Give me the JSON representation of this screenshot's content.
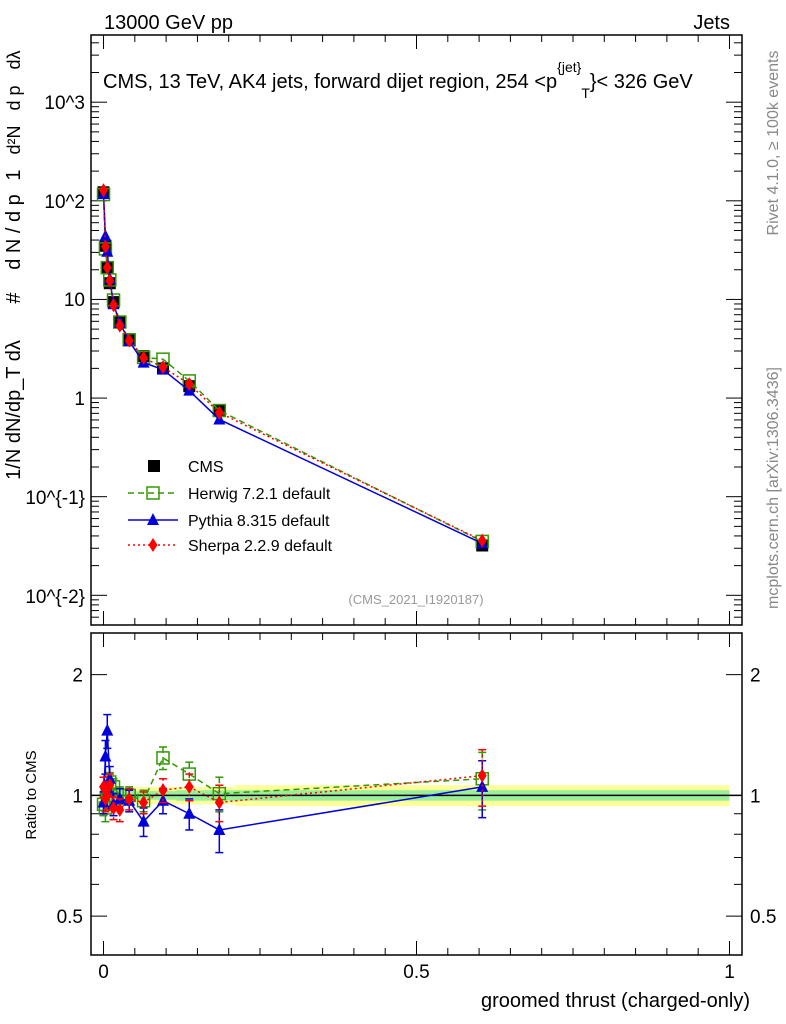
{
  "header": {
    "left": "13000 GeV pp",
    "right": "Jets"
  },
  "side_labels": {
    "rivet": "Rivet 4.1.0, ≥ 100k events",
    "mcplots": "mcplots.cern.ch [arXiv:1306.3436]"
  },
  "chart_data": {
    "type": "line",
    "title": "CMS, 13 TeV, AK4 jets, forward dijet region, 254 < p_T^{jet} < 326 GeV",
    "title_text": "CMS, 13 TeV, AK4 jets, forward dijet region, 254 <p",
    "title_sup": "{jet}",
    "title_sub": "T",
    "title_end": "}< 326 GeV",
    "ylabel": "1/N dN/dp_T dλ",
    "ylabel_parts": {
      "num": "1",
      "den": "d N / d p",
      "sub": "T",
      "frac2num": "d²N",
      "frac2den": "d p",
      "frac2tail": "dλ",
      "hash": "#"
    },
    "xlabel": "groomed thrust (charged-only)",
    "ratio_ylabel": "Ratio to CMS",
    "analysis_tag": "(CMS_2021_I1920187)",
    "xlim": [
      -0.02,
      1.02
    ],
    "ylim": [
      0.005,
      4800
    ],
    "ratio_ylim": [
      0.4,
      2.54
    ],
    "x_ticks": [
      "0",
      "0.5",
      "1"
    ],
    "y_ticks": [
      "10^{-2}",
      "10^{-1}",
      "1",
      "10",
      "10^2",
      "10^3"
    ],
    "y_tick_labels": [
      {
        "base": "10",
        "exp": "−2"
      },
      {
        "base": "10",
        "exp": "−1"
      },
      {
        "base": "1",
        "exp": ""
      },
      {
        "base": "10",
        "exp": ""
      },
      {
        "base": "10",
        "exp": "2"
      },
      {
        "base": "10",
        "exp": "3"
      }
    ],
    "ratio_ticks": [
      "0.5",
      "1",
      "2"
    ],
    "x": [
      0.0,
      0.003,
      0.006,
      0.01,
      0.016,
      0.026,
      0.041,
      0.064,
      0.095,
      0.137,
      0.185,
      0.605
    ],
    "cms": {
      "name": "CMS",
      "values": [
        122,
        35,
        21,
        14.6,
        9.4,
        5.9,
        3.9,
        2.66,
        2.0,
        1.32,
        0.74,
        0.032
      ]
    },
    "band_stat": [
      0.04,
      0.05,
      0.05,
      0.04,
      0.03,
      0.03,
      0.025,
      0.025,
      0.025,
      0.03,
      0.03,
      0.03
    ],
    "band_total": [
      0.08,
      0.09,
      0.09,
      0.08,
      0.06,
      0.05,
      0.05,
      0.05,
      0.05,
      0.05,
      0.05,
      0.06
    ],
    "series": [
      {
        "name": "Herwig 7.2.1 default",
        "color": "#339900",
        "ratio": [
          0.95,
          0.93,
          1.0,
          1.08,
          1.05,
          1.0,
          1.0,
          0.97,
          1.24,
          1.13,
          1.01,
          1.1
        ],
        "err": [
          0.06,
          0.07,
          0.07,
          0.06,
          0.05,
          0.05,
          0.05,
          0.06,
          0.08,
          0.08,
          0.1,
          0.18
        ]
      },
      {
        "name": "Pythia 8.315 default",
        "color": "#0000dd",
        "ratio": [
          0.96,
          1.25,
          1.45,
          1.1,
          0.95,
          0.98,
          0.97,
          0.86,
          0.97,
          0.9,
          0.82,
          1.05
        ],
        "err": [
          0.06,
          0.12,
          0.14,
          0.08,
          0.06,
          0.06,
          0.06,
          0.07,
          0.07,
          0.08,
          0.1,
          0.17
        ]
      },
      {
        "name": "Sherpa 2.2.9 default",
        "color": "#ff0000",
        "ratio": [
          1.05,
          0.98,
          1.0,
          1.06,
          0.93,
          0.92,
          0.98,
          0.96,
          1.03,
          1.05,
          0.96,
          1.12
        ],
        "err": [
          0.06,
          0.07,
          0.08,
          0.07,
          0.06,
          0.06,
          0.06,
          0.06,
          0.07,
          0.08,
          0.1,
          0.18
        ]
      }
    ],
    "legend_position": "middle-left"
  }
}
